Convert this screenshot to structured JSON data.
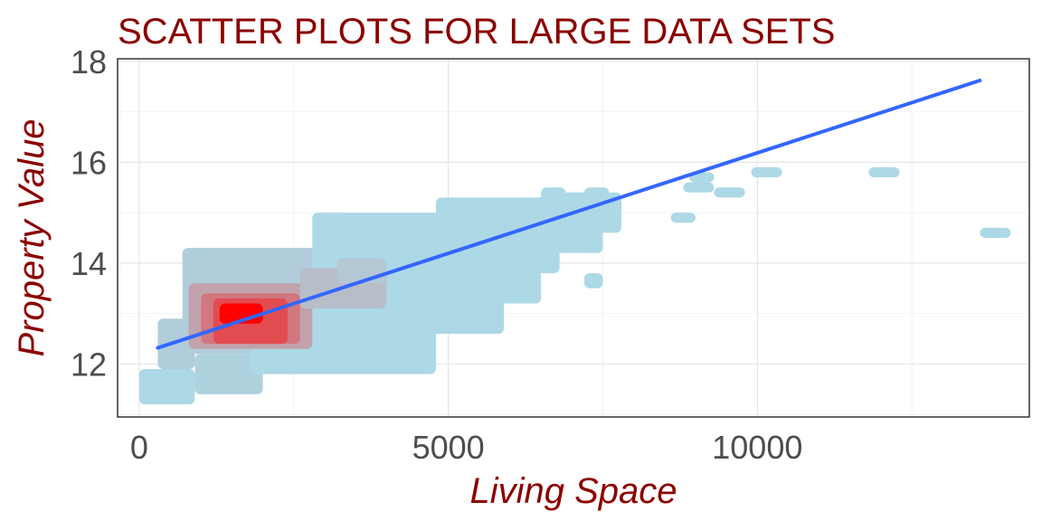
{
  "chart_data": {
    "type": "heatmap",
    "title": "SCATTER PLOTS FOR LARGE DATA SETS",
    "xlabel": "Living Space",
    "ylabel": "Property Value",
    "xlim": [
      -350,
      14400
    ],
    "ylim": [
      10.95,
      18.05
    ],
    "x_ticks": [
      0,
      5000,
      10000
    ],
    "x_tick_labels": [
      "0",
      "5000",
      "10000"
    ],
    "y_ticks": [
      12,
      14,
      16,
      18
    ],
    "y_tick_labels": [
      "12",
      "14",
      "16",
      "18"
    ],
    "grid": true,
    "legend": "none",
    "colors": {
      "low_density": "#add8e6",
      "high_density": "#ff0000",
      "trend_line": "#3366ff",
      "title": "#8b0000"
    },
    "density_bins": [
      {
        "x": [
          0,
          900
        ],
        "y": [
          11.2,
          11.9
        ],
        "density": 0.0
      },
      {
        "x": [
          300,
          900
        ],
        "y": [
          11.9,
          12.9
        ],
        "density": 0.05
      },
      {
        "x": [
          900,
          2000
        ],
        "y": [
          11.4,
          12.2
        ],
        "density": 0.03
      },
      {
        "x": [
          700,
          4200
        ],
        "y": [
          12.2,
          14.3
        ],
        "density": 0.05
      },
      {
        "x": [
          1800,
          4800
        ],
        "y": [
          11.8,
          12.8
        ],
        "density": 0.0
      },
      {
        "x": [
          2800,
          5900
        ],
        "y": [
          12.6,
          13.6
        ],
        "density": 0.0
      },
      {
        "x": [
          2800,
          6400
        ],
        "y": [
          13.4,
          15.0
        ],
        "density": 0.0
      },
      {
        "x": [
          4800,
          7500
        ],
        "y": [
          14.2,
          15.3
        ],
        "density": 0.0
      },
      {
        "x": [
          5300,
          6500
        ],
        "y": [
          13.2,
          14.2
        ],
        "density": 0.0
      },
      {
        "x": [
          6500,
          7800
        ],
        "y": [
          14.6,
          15.4
        ],
        "density": 0.0
      },
      {
        "x": [
          6200,
          6800
        ],
        "y": [
          13.8,
          14.3
        ],
        "density": 0.0
      },
      {
        "x": [
          7200,
          7500
        ],
        "y": [
          13.5,
          13.8
        ],
        "density": 0.0
      },
      {
        "x": [
          800,
          2800
        ],
        "y": [
          12.3,
          13.6
        ],
        "density": 0.25
      },
      {
        "x": [
          1000,
          2600
        ],
        "y": [
          12.4,
          13.4
        ],
        "density": 0.45
      },
      {
        "x": [
          1200,
          2400
        ],
        "y": [
          12.4,
          13.3
        ],
        "density": 0.65
      },
      {
        "x": [
          1300,
          2000
        ],
        "y": [
          12.8,
          13.2
        ],
        "density": 1.0
      },
      {
        "x": [
          2600,
          4000
        ],
        "y": [
          13.1,
          13.9
        ],
        "density": 0.12
      },
      {
        "x": [
          3200,
          4000
        ],
        "y": [
          13.6,
          14.1
        ],
        "density": 0.08
      },
      {
        "x": [
          6500,
          6900
        ],
        "y": [
          15.2,
          15.5
        ],
        "density": 0.0
      },
      {
        "x": [
          7200,
          7600
        ],
        "y": [
          15.3,
          15.5
        ],
        "density": 0.0
      },
      {
        "x": [
          8800,
          9300
        ],
        "y": [
          15.4,
          15.6
        ],
        "density": 0.0
      },
      {
        "x": [
          9300,
          9800
        ],
        "y": [
          15.3,
          15.5
        ],
        "density": 0.0
      },
      {
        "x": [
          9900,
          10400
        ],
        "y": [
          15.7,
          15.9
        ],
        "density": 0.0
      },
      {
        "x": [
          8600,
          9000
        ],
        "y": [
          14.8,
          15.0
        ],
        "density": 0.0
      },
      {
        "x": [
          11800,
          12300
        ],
        "y": [
          15.7,
          15.9
        ],
        "density": 0.0
      },
      {
        "x": [
          13600,
          14100
        ],
        "y": [
          14.5,
          14.7
        ],
        "density": 0.0
      },
      {
        "x": [
          8900,
          9300
        ],
        "y": [
          15.6,
          15.8
        ],
        "density": 0.0
      }
    ],
    "trend_line": {
      "x": [
        300,
        13600
      ],
      "y": [
        12.32,
        17.62
      ]
    }
  }
}
